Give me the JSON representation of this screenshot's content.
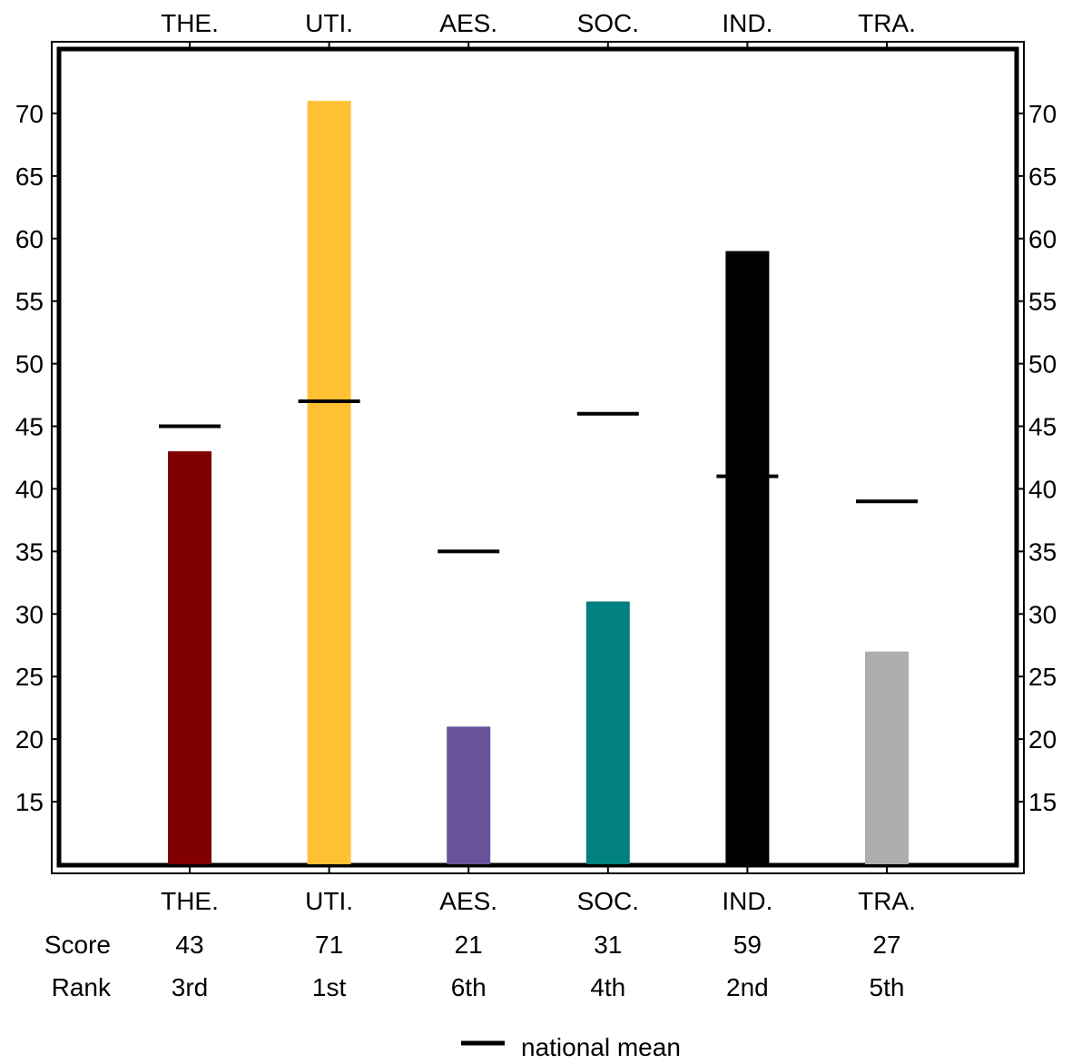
{
  "chart_data": {
    "type": "bar",
    "categories": [
      "THE.",
      "UTI.",
      "AES.",
      "SOC.",
      "IND.",
      "TRA."
    ],
    "values": [
      43,
      71,
      21,
      31,
      59,
      27
    ],
    "national_mean": [
      45,
      47,
      35,
      46,
      41,
      39
    ],
    "ranks": [
      "3rd",
      "1st",
      "6th",
      "4th",
      "2nd",
      "5th"
    ],
    "bar_colors": [
      "#800000",
      "#FFC133",
      "#68539B",
      "#008080",
      "#000000",
      "#ADADAD"
    ],
    "mean_color": "#000000",
    "ylim": [
      10,
      75
    ],
    "yticks": [
      15,
      20,
      25,
      30,
      35,
      40,
      45,
      50,
      55,
      60,
      65,
      70
    ],
    "grid": false,
    "row_labels": {
      "score": "Score",
      "rank": "Rank"
    },
    "legend": {
      "label": "national mean",
      "position": "bottom-center"
    }
  }
}
